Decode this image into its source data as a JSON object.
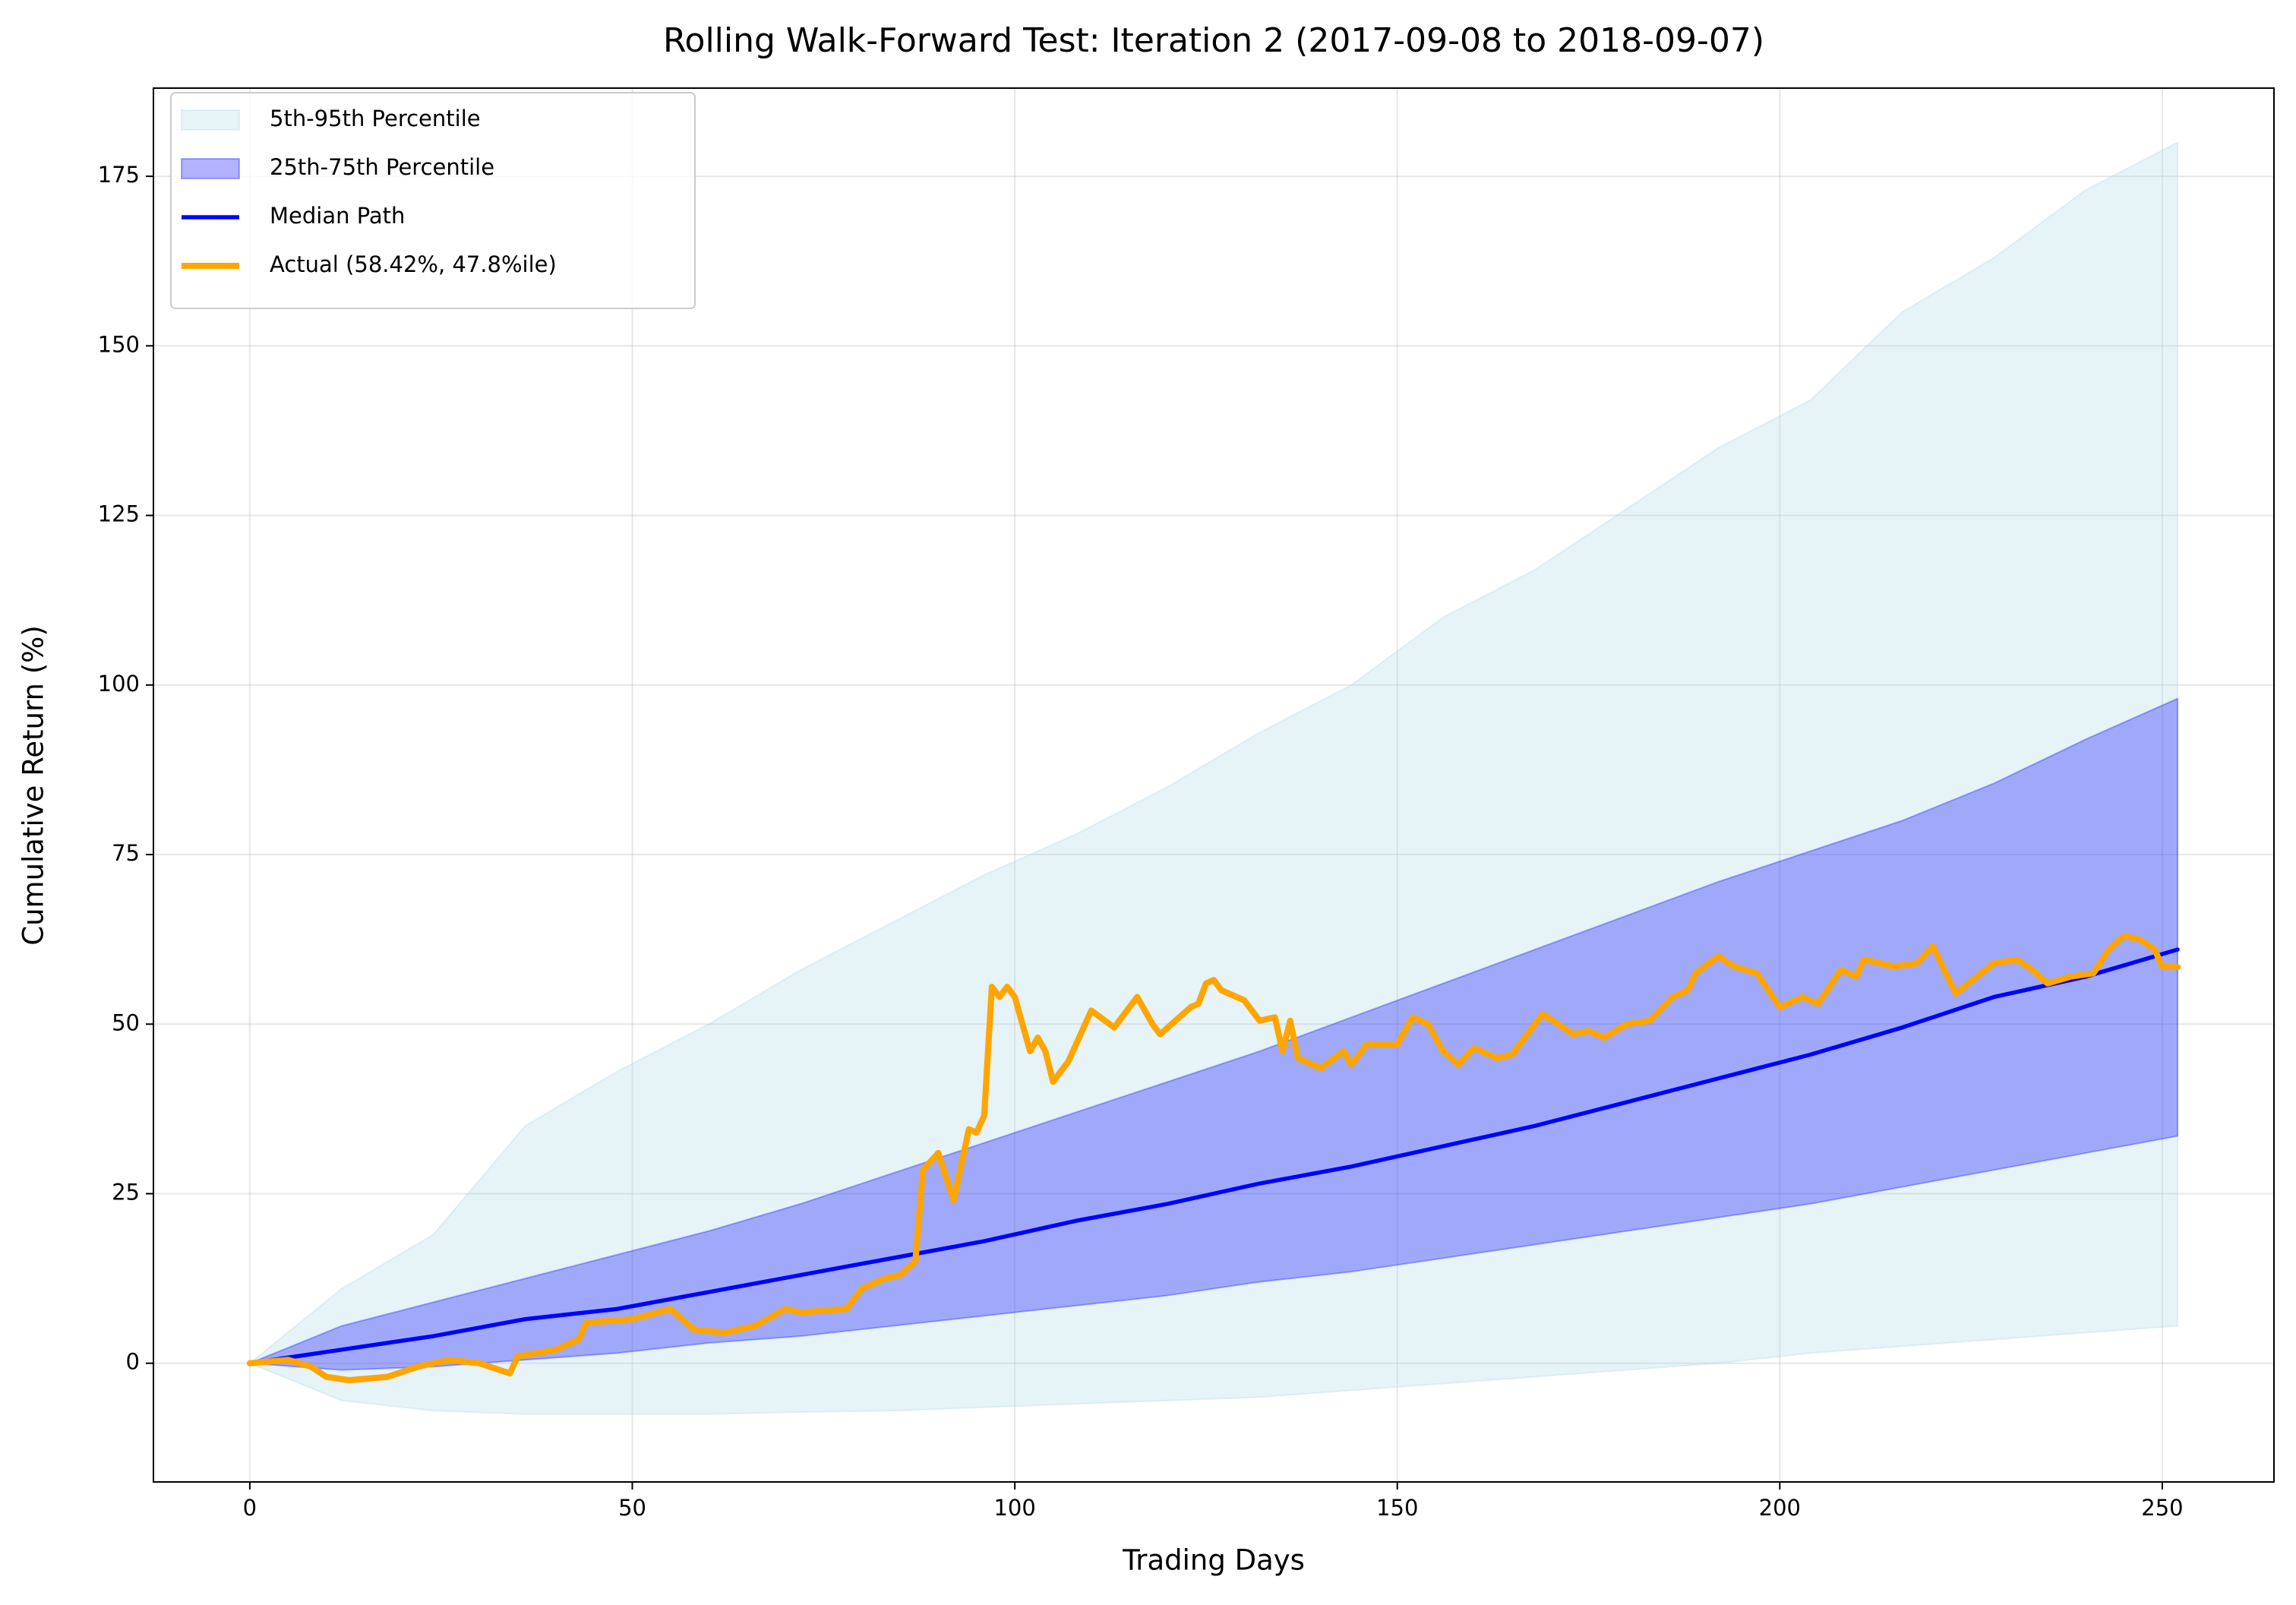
{
  "chart_data": {
    "type": "line",
    "title": "Rolling Walk-Forward Test: Iteration 2 (2017-09-08 to 2018-09-07)",
    "x_label": "Trading Days",
    "y_label": "Cumulative Return (%)",
    "xlim": [
      -12.6,
      264.6
    ],
    "ylim": [
      -17.5,
      188
    ],
    "xticks": [
      0,
      50,
      100,
      150,
      200,
      250
    ],
    "yticks": [
      0,
      25,
      50,
      75,
      100,
      125,
      150,
      175
    ],
    "grid": true,
    "legend": "upper left",
    "x": [
      0,
      12,
      24,
      36,
      48,
      60,
      72,
      84,
      96,
      108,
      120,
      132,
      144,
      156,
      168,
      180,
      192,
      204,
      216,
      228,
      240,
      252
    ],
    "series": [
      {
        "name": "5th-95th Percentile",
        "kind": "band",
        "color": "#add8e6",
        "alpha": 0.3,
        "low": [
          0,
          -5.5,
          -7,
          -7.5,
          -7.5,
          -7.5,
          -7.2,
          -7,
          -6.5,
          -6,
          -5.5,
          -5,
          -4,
          -3,
          -2,
          -1,
          0,
          1.5,
          2.5,
          3.5,
          4.5,
          5.5
        ],
        "high": [
          0,
          11,
          19,
          35,
          43,
          50,
          58,
          65,
          72,
          78,
          85,
          93,
          100,
          110,
          117,
          126,
          135,
          142,
          155,
          163,
          173,
          180
        ]
      },
      {
        "name": "25th-75th Percentile",
        "kind": "band",
        "color": "#0000ff",
        "alpha": 0.3,
        "low": [
          0,
          -1,
          -0.5,
          0.5,
          1.5,
          3,
          4,
          5.5,
          7,
          8.5,
          10,
          12,
          13.5,
          15.5,
          17.5,
          19.5,
          21.5,
          23.5,
          26,
          28.5,
          31,
          33.5
        ],
        "high": [
          0,
          5.5,
          9,
          12.5,
          16,
          19.5,
          23.5,
          28,
          32.5,
          37,
          41.5,
          46,
          51,
          56,
          61,
          66,
          71,
          75.5,
          80,
          85.5,
          92,
          98
        ]
      },
      {
        "name": "Median Path",
        "kind": "line",
        "color": "#0000ff",
        "width": 2,
        "values": [
          0,
          2,
          4,
          6.5,
          8,
          10.5,
          13,
          15.5,
          18,
          21,
          23.5,
          26.5,
          29,
          32,
          35,
          38.5,
          42,
          45.5,
          49.5,
          54,
          57,
          61
        ]
      },
      {
        "name": "Actual (58.42%, 47.8%ile)",
        "kind": "line",
        "color": "#ffa500",
        "width": 3,
        "x": [
          0,
          5,
          8,
          10,
          13,
          18,
          22,
          26,
          30,
          34,
          35,
          40,
          43,
          44,
          50,
          55,
          58,
          62,
          66,
          70,
          72,
          78,
          80,
          83,
          85,
          87,
          88,
          90,
          92,
          94,
          95,
          96,
          97,
          98,
          99,
          100,
          102,
          103,
          104,
          105,
          107,
          110,
          113,
          116,
          118,
          119,
          123,
          124,
          125,
          126,
          127,
          130,
          132,
          134,
          135,
          136,
          137,
          140,
          143,
          144,
          146,
          150,
          152,
          154,
          156,
          158,
          160,
          163,
          165,
          167,
          169,
          171,
          173,
          175,
          177,
          180,
          183,
          186,
          188,
          189,
          192,
          194,
          197,
          200,
          203,
          205,
          208,
          210,
          211,
          215,
          218,
          220,
          223,
          228,
          231,
          233,
          235,
          238,
          241,
          243,
          245,
          247,
          249,
          250,
          252
        ],
        "values": [
          0,
          0.5,
          -0.5,
          -2,
          -2.5,
          -2,
          -0.5,
          0.5,
          0,
          -1.5,
          1,
          2,
          3.5,
          6,
          6.5,
          8,
          5,
          4.5,
          5.5,
          8,
          7.5,
          8,
          11,
          12.5,
          13,
          15,
          28.5,
          31,
          24,
          34.5,
          34,
          36.5,
          55.5,
          54,
          55.5,
          54,
          46,
          48,
          46,
          41.5,
          44.5,
          52,
          49.5,
          54,
          50,
          48.5,
          52.5,
          53,
          56,
          56.5,
          55,
          53.5,
          50.5,
          51,
          46,
          50.5,
          45,
          43.5,
          46,
          44,
          47,
          47,
          51,
          50,
          46,
          44,
          46.5,
          45,
          45.5,
          48.5,
          51.5,
          50,
          48.5,
          49,
          48,
          50,
          50.5,
          54,
          55,
          57.5,
          60,
          58.5,
          57.5,
          52.5,
          54,
          53,
          58,
          57,
          59.5,
          58.5,
          59,
          61.5,
          54.5,
          59,
          59.5,
          58,
          56,
          57,
          57.5,
          61,
          63,
          62.5,
          61,
          58.5,
          58.4
        ]
      }
    ]
  }
}
